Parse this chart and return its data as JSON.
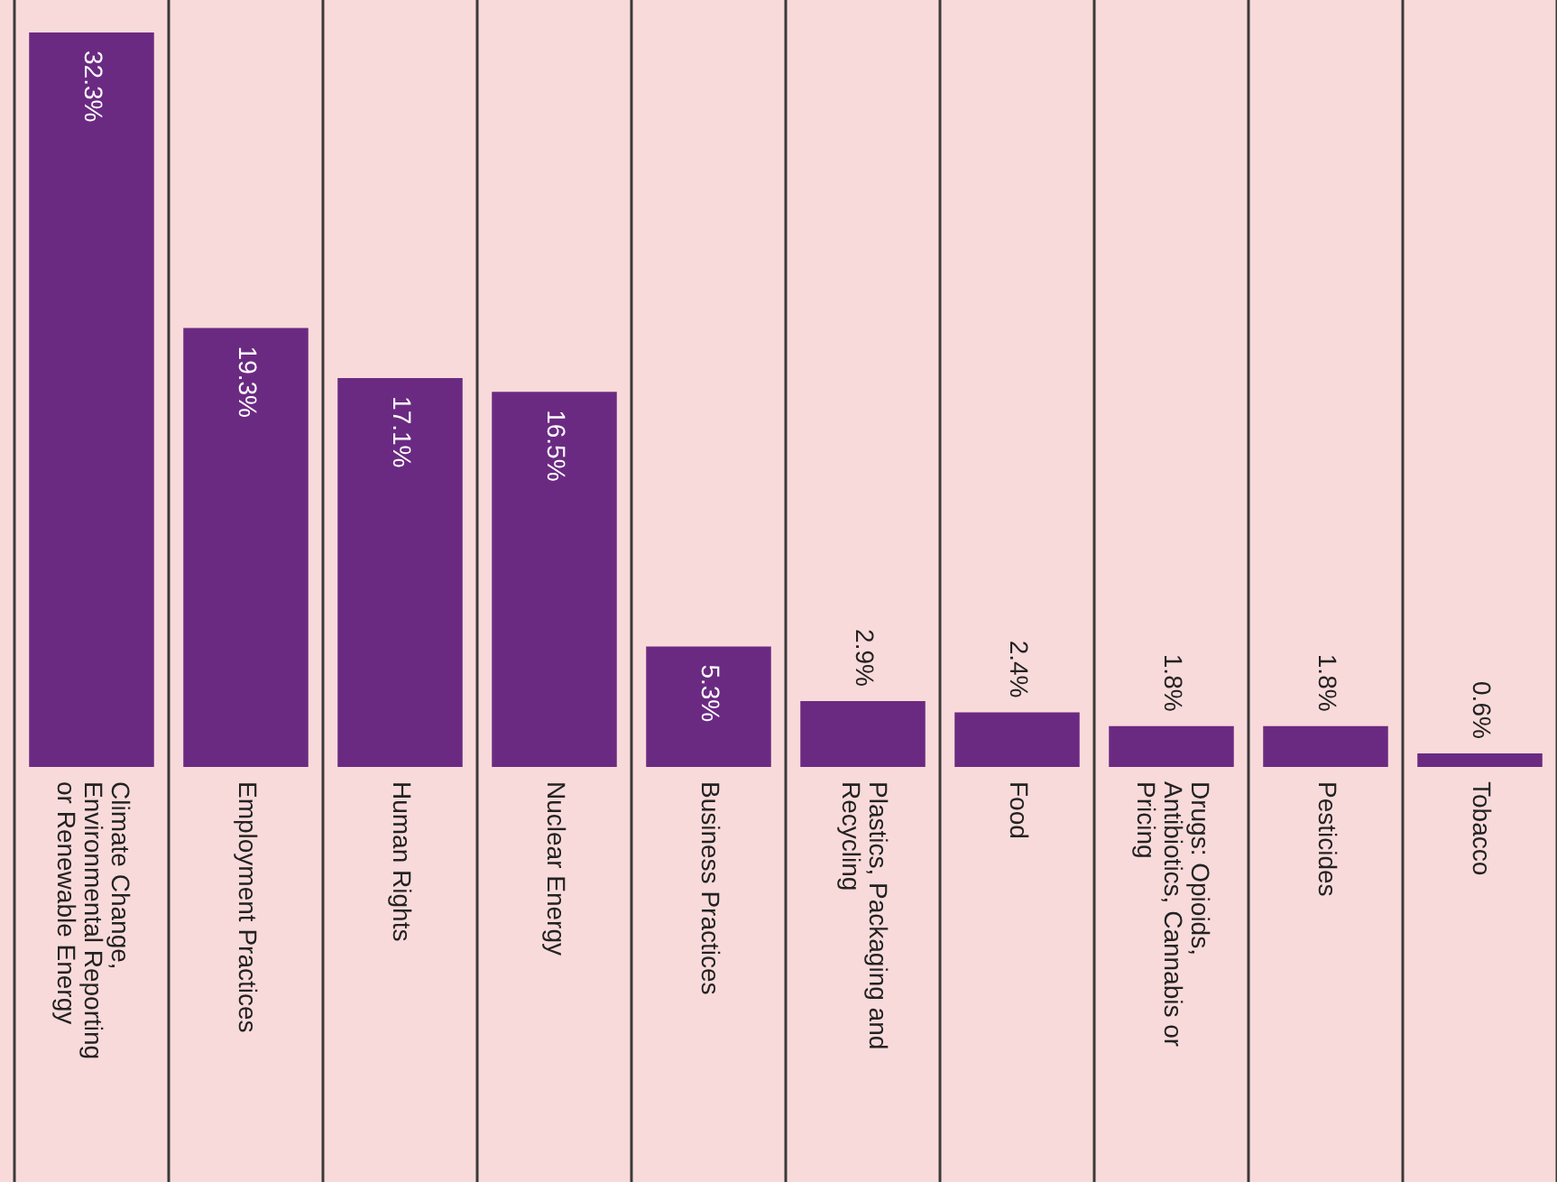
{
  "chart_data": {
    "type": "bar",
    "categories": [
      "Climate Change, Environmental Reporting or Renewable Energy",
      "Employment Practices",
      "Human Rights",
      "Nuclear Energy",
      "Business Practices",
      "Plastics, Packaging and Recycling",
      "Food",
      "Drugs: Opioids, Antibiotics, Cannabis or Pricing",
      "Pesticides",
      "Tobacco"
    ],
    "values": [
      32.3,
      19.3,
      17.1,
      16.5,
      5.3,
      2.9,
      2.4,
      1.8,
      1.8,
      0.6
    ],
    "value_labels": [
      "32.3%",
      "19.3%",
      "17.1%",
      "16.5%",
      "5.3%",
      "2.9%",
      "2.4%",
      "1.8%",
      "1.8%",
      "0.6%"
    ],
    "color": "#6b2a82",
    "ylim": [
      0,
      32.3
    ],
    "grid": "x",
    "tick_labels": "x",
    "legend": false
  }
}
